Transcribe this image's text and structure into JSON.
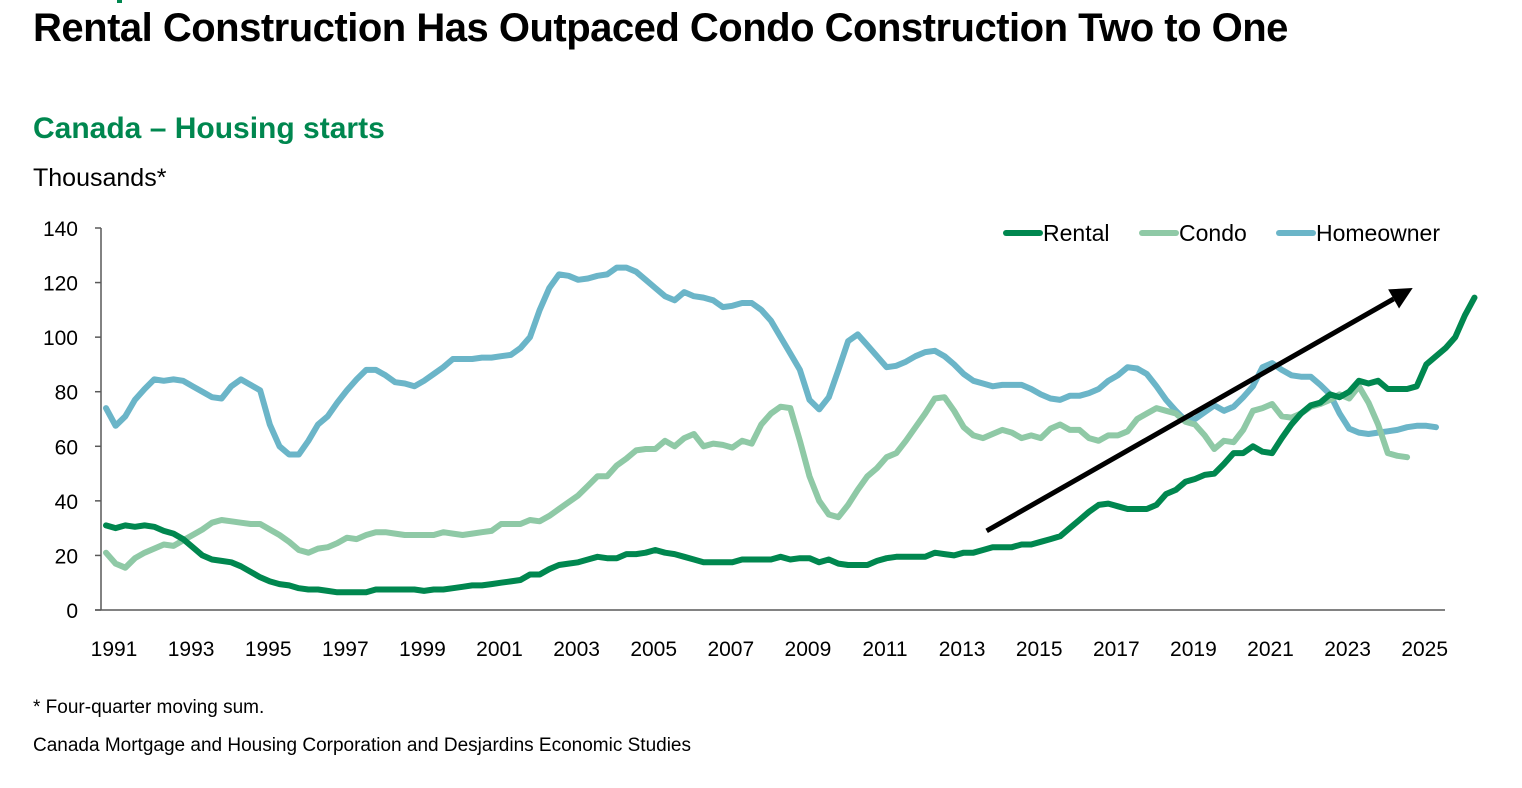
{
  "header": {
    "title": "Rental Construction Has Outpaced Condo Construction Two to One",
    "subtitle": "Canada – Housing starts",
    "unit_label": "Thousands*"
  },
  "footer": {
    "note": "* Four-quarter moving sum.",
    "source": "Canada Mortgage and Housing Corporation and Desjardins Economic Studies"
  },
  "colors": {
    "rental": "#00874f",
    "condo": "#8fc9a6",
    "homeowner": "#6bb5c8",
    "subtitle": "#00874f",
    "axis": "#595959",
    "arrow": "#000000"
  },
  "chart_data": {
    "type": "line",
    "title": "Canada – Housing starts",
    "ylabel": "Thousands*",
    "xlabel": "",
    "ylim": [
      0,
      140
    ],
    "yticks": [
      0,
      20,
      40,
      60,
      80,
      100,
      120,
      140
    ],
    "xlim": [
      1991.0,
      2025.75
    ],
    "xtick_labels": [
      "1991",
      "1993",
      "1995",
      "1997",
      "1999",
      "2001",
      "2003",
      "2005",
      "2007",
      "2009",
      "2011",
      "2013",
      "2015",
      "2017",
      "2019",
      "2021",
      "2023",
      "2025"
    ],
    "x_start": 1991.0,
    "x_step": 0.25,
    "grid": false,
    "legend": {
      "position": "top-right",
      "entries": [
        "Rental",
        "Condo",
        "Homeowner"
      ]
    },
    "annotation": {
      "type": "arrow",
      "from": [
        2014.0,
        29
      ],
      "to": [
        2025.0,
        118
      ],
      "description": "upward trend arrow"
    },
    "series": [
      {
        "name": "Rental",
        "values": [
          31,
          30,
          31,
          30.5,
          31,
          30.5,
          29,
          28,
          26,
          23,
          20,
          18.5,
          18,
          17.5,
          16,
          14,
          12,
          10.5,
          9.5,
          9,
          8,
          7.5,
          7.5,
          7,
          6.5,
          6.5,
          6.5,
          6.5,
          7.5,
          7.5,
          7.5,
          7.5,
          7.5,
          7,
          7.5,
          7.5,
          8,
          8.5,
          9,
          9,
          9.5,
          10,
          10.5,
          11,
          13,
          13,
          15,
          16.5,
          17,
          17.5,
          18.5,
          19.5,
          19,
          19,
          20.5,
          20.5,
          21,
          22,
          21,
          20.5,
          19.5,
          18.5,
          17.5,
          17.5,
          17.5,
          17.5,
          18.5,
          18.5,
          18.5,
          18.5,
          19.5,
          18.5,
          19,
          19,
          17.5,
          18.5,
          17,
          16.5,
          16.5,
          16.5,
          18,
          19,
          19.5,
          19.5,
          19.5,
          19.5,
          21,
          20.5,
          20,
          21,
          21,
          22,
          23,
          23,
          23,
          24,
          24,
          25,
          26,
          27,
          30,
          33,
          36,
          38.5,
          39,
          38,
          37,
          37,
          37,
          38.5,
          42.5,
          44,
          47,
          48,
          49.5,
          50,
          53.5,
          57.5,
          57.5,
          60,
          58,
          57.5,
          63,
          68,
          72,
          75,
          76,
          79,
          78,
          80,
          84,
          83,
          84,
          81,
          81,
          81,
          82,
          90,
          93,
          96,
          100,
          108,
          114.5
        ]
      },
      {
        "name": "Condo",
        "values": [
          21,
          17,
          15.5,
          19,
          21,
          22.5,
          24,
          23.5,
          25.5,
          27.5,
          29.5,
          32,
          33,
          32.5,
          32,
          31.5,
          31.5,
          29.5,
          27.5,
          25,
          22,
          21,
          22.5,
          23,
          24.5,
          26.5,
          26,
          27.5,
          28.5,
          28.5,
          28,
          27.5,
          27.5,
          27.5,
          27.5,
          28.5,
          28,
          27.5,
          28,
          28.5,
          29,
          31.5,
          31.5,
          31.5,
          33,
          32.5,
          34.5,
          37,
          39.5,
          42,
          45.5,
          49,
          49,
          53,
          55.5,
          58.5,
          59,
          59,
          62,
          60,
          63,
          64.5,
          60,
          61,
          60.5,
          59.5,
          62,
          61,
          68,
          72,
          74.5,
          74,
          62,
          49,
          40,
          35,
          34,
          38.5,
          44,
          49,
          52,
          56,
          57.5,
          62,
          67,
          72,
          77.5,
          78,
          73,
          67,
          64,
          63,
          64.5,
          66,
          65,
          63,
          64,
          63,
          66.5,
          68,
          66,
          66,
          63,
          62,
          64,
          64,
          65.5,
          70,
          72,
          74,
          73,
          72,
          69,
          68,
          64,
          59,
          62,
          61.5,
          66,
          73,
          74,
          75.5,
          71,
          70.5,
          72,
          74.5,
          75.5,
          77,
          79,
          77.5,
          82,
          76,
          68,
          57.5,
          56.5,
          56
        ]
      },
      {
        "name": "Homeowner",
        "values": [
          74,
          67.5,
          71,
          77,
          81,
          84.5,
          84,
          84.5,
          84,
          82,
          80,
          78,
          77.5,
          82,
          84.5,
          82.5,
          80.5,
          68,
          60,
          57,
          57,
          62,
          68,
          71,
          76,
          80.5,
          84.5,
          88,
          88,
          86,
          83.5,
          83,
          82,
          84,
          86.5,
          89,
          92,
          92,
          92,
          92.5,
          92.5,
          93,
          93.5,
          96,
          100,
          110,
          118,
          123,
          122.5,
          121,
          121.5,
          122.5,
          123,
          125.5,
          125.5,
          124,
          121,
          118,
          115,
          113.5,
          116.5,
          115,
          114.5,
          113.5,
          111,
          111.5,
          112.5,
          112.5,
          110,
          106,
          100,
          94,
          88,
          77,
          73.5,
          78,
          88,
          98.5,
          101,
          97,
          93,
          89,
          89.5,
          91,
          93,
          94.5,
          95,
          93,
          90,
          86.5,
          84,
          83,
          82,
          82.5,
          82.5,
          82.5,
          81,
          79,
          77.5,
          77,
          78.5,
          78.5,
          79.5,
          81,
          84,
          86,
          89,
          88.5,
          86.5,
          82,
          77,
          73,
          69.5,
          70,
          72.5,
          75,
          73,
          74.5,
          78,
          82,
          89,
          90.5,
          88,
          86,
          85.5,
          85.5,
          82.5,
          79,
          72,
          66.5,
          65,
          64.5,
          65,
          65.5,
          66,
          67,
          67.5,
          67.5,
          67
        ]
      }
    ]
  }
}
